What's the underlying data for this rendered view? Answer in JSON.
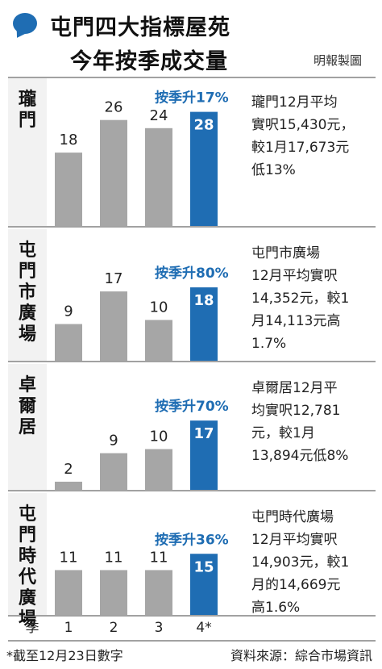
{
  "header": {
    "title_line1": "屯門四大指標屋苑",
    "title_line2": "今年按季成交量",
    "credit": "明報製圖"
  },
  "colors": {
    "bar_default": "#a6a6a6",
    "bar_highlight": "#1f6db3",
    "callout": "#1f6db3"
  },
  "chart_data": {
    "type": "bar",
    "categories": [
      "1",
      "2",
      "3",
      "4*"
    ],
    "xlabel": "季",
    "panels": [
      {
        "name": "瓏門",
        "values": [
          18,
          26,
          24,
          28
        ],
        "callout": "按季升17%",
        "note": [
          "瓏門12月平均",
          "實呎15,430元，",
          "較1月17,673元",
          "低13%"
        ]
      },
      {
        "name": "屯門市廣場",
        "values": [
          9,
          17,
          10,
          18
        ],
        "callout": "按季升80%",
        "note": [
          "屯門市廣場",
          "12月平均實呎",
          "14,352元，較1",
          "月14,113元高",
          "1.7%"
        ]
      },
      {
        "name": "卓爾居",
        "values": [
          2,
          9,
          10,
          17
        ],
        "callout": "按季升70%",
        "note": [
          "卓爾居12月平",
          "均實呎12,781",
          "元，較1月",
          "13,894元低8%"
        ]
      },
      {
        "name": "屯門時代廣場",
        "values": [
          11,
          11,
          11,
          15
        ],
        "callout": "按季升36%",
        "note": [
          "屯門時代廣場",
          "12月平均實呎",
          "14,903元，較1",
          "月的14,669元",
          "高1.6%"
        ]
      }
    ]
  },
  "footer": {
    "note": "*截至12月23日數字",
    "source": "資料來源：綜合市場資訊"
  }
}
